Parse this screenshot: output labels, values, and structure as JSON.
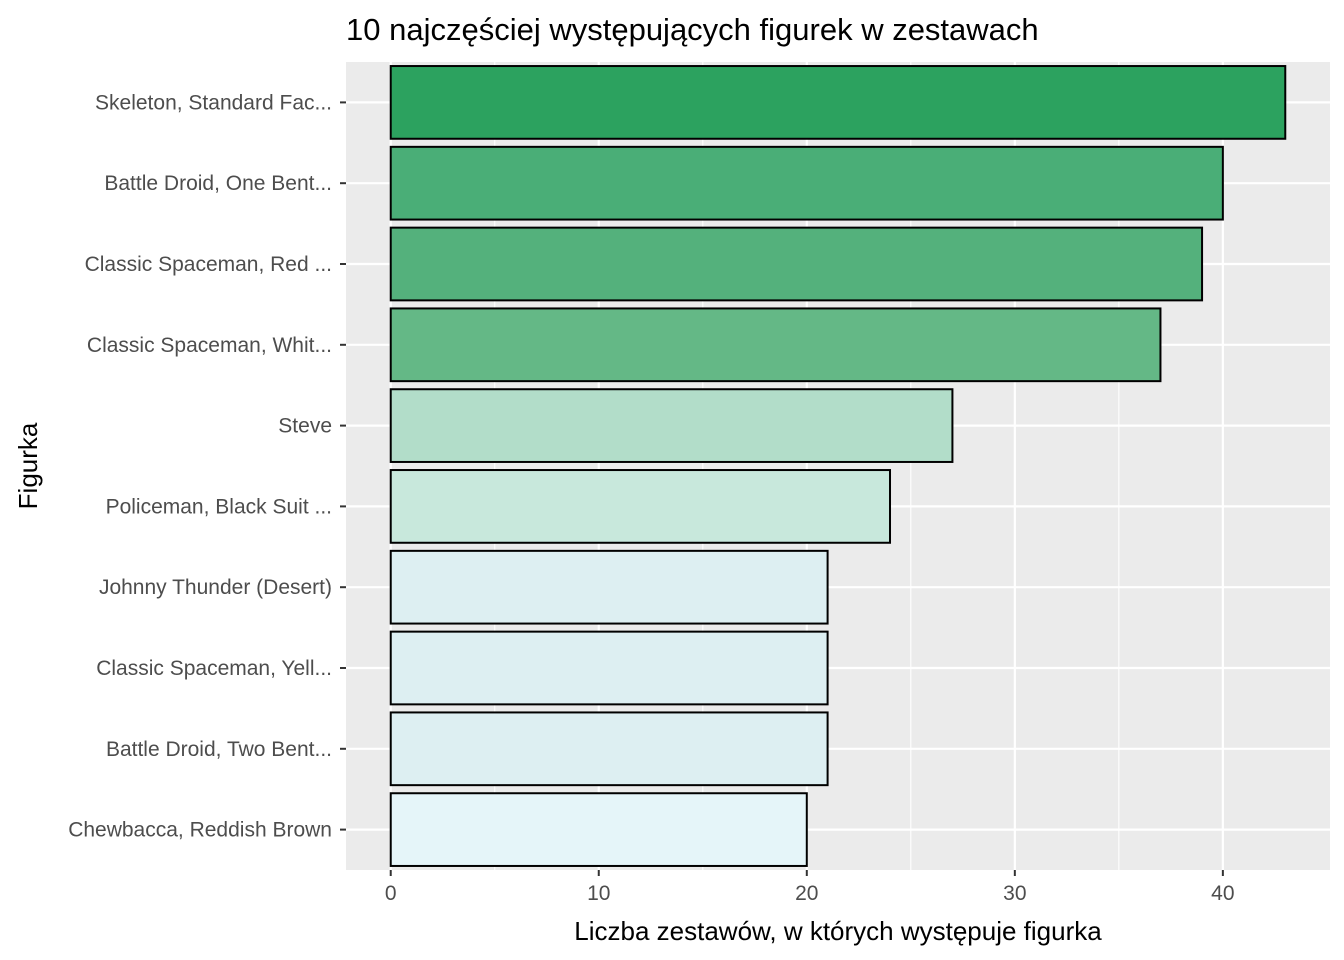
{
  "chart_data": {
    "type": "bar",
    "orientation": "horizontal",
    "title": "10 najczęściej występujących figurek w zestawach",
    "xlabel": "Liczba zestawów, w których występuje figurka",
    "ylabel": "Figurka",
    "categories": [
      "Skeleton, Standard Fac...",
      "Battle Droid, One Bent...",
      "Classic Spaceman, Red ...",
      "Classic Spaceman, Whit...",
      "Steve",
      "Policeman, Black Suit ...",
      "Johnny Thunder (Desert)",
      "Classic Spaceman, Yell...",
      "Battle Droid, Two Bent...",
      "Chewbacca, Reddish Brown"
    ],
    "values": [
      43,
      40,
      39,
      37,
      27,
      24,
      21,
      21,
      21,
      20
    ],
    "bar_colors": [
      "#2ca25f",
      "#4aae77",
      "#54b17c",
      "#64b886",
      "#b2ddc9",
      "#c8e8dc",
      "#ddeff2",
      "#ddeff2",
      "#ddeff2",
      "#e5f5f9"
    ],
    "bar_outline": "#000000",
    "xlim": [
      -2.15,
      45.15
    ],
    "x_ticks": [
      0,
      10,
      20,
      30,
      40
    ],
    "x_minor_ticks": [
      5,
      15,
      25,
      35
    ],
    "grid": true,
    "panel_background": "#ebebeb",
    "grid_color": "#ffffff",
    "legend": "none"
  }
}
